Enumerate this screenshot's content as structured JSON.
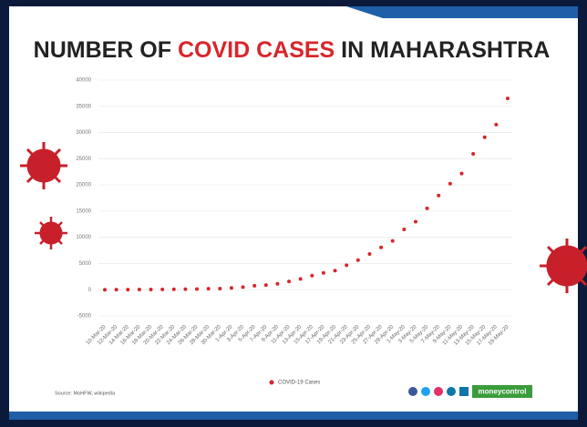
{
  "chart_data": {
    "type": "dotline",
    "title_parts": [
      "NUMBER OF ",
      "COVID CASES",
      " IN MAHARASHTRA"
    ],
    "categories": [
      "10-Mar-20",
      "12-Mar-20",
      "14-Mar-20",
      "16-Mar-20",
      "18-Mar-20",
      "20-Mar-20",
      "22-Mar-20",
      "24-Mar-20",
      "26-Mar-20",
      "28-Mar-20",
      "30-Mar-20",
      "1-Apr-20",
      "3-Apr-20",
      "5-Apr-20",
      "7-Apr-20",
      "9-Apr-20",
      "11-Apr-20",
      "13-Apr-20",
      "15-Apr-20",
      "17-Apr-20",
      "19-Apr-20",
      "21-Apr-20",
      "23-Apr-20",
      "25-Apr-20",
      "27-Apr-20",
      "29-Apr-20",
      "1-May-20",
      "3-May-20",
      "5-May-20",
      "7-May-20",
      "9-May-20",
      "11-May-20",
      "13-May-20",
      "15-May-20",
      "17-May-20",
      "19-May-20"
    ],
    "series": [
      {
        "name": "COVID-19 Cases",
        "color": "#d7262b",
        "values": [
          5,
          11,
          26,
          38,
          45,
          52,
          74,
          107,
          130,
          186,
          220,
          335,
          490,
          748,
          891,
          1135,
          1574,
          2064,
          2687,
          3205,
          3651,
          4669,
          5649,
          6817,
          8068,
          9318,
          11506,
          12974,
          15525,
          17974,
          20228,
          22171,
          25922,
          29100,
          31500,
          36500
        ]
      }
    ],
    "ylim": [
      -5000,
      40000
    ],
    "yticks": [
      -5000,
      0,
      5000,
      10000,
      15000,
      20000,
      25000,
      30000,
      35000,
      40000
    ],
    "grid": true,
    "source": "Source: MoHFW, wikipedia",
    "brand": "moneycontrol"
  }
}
